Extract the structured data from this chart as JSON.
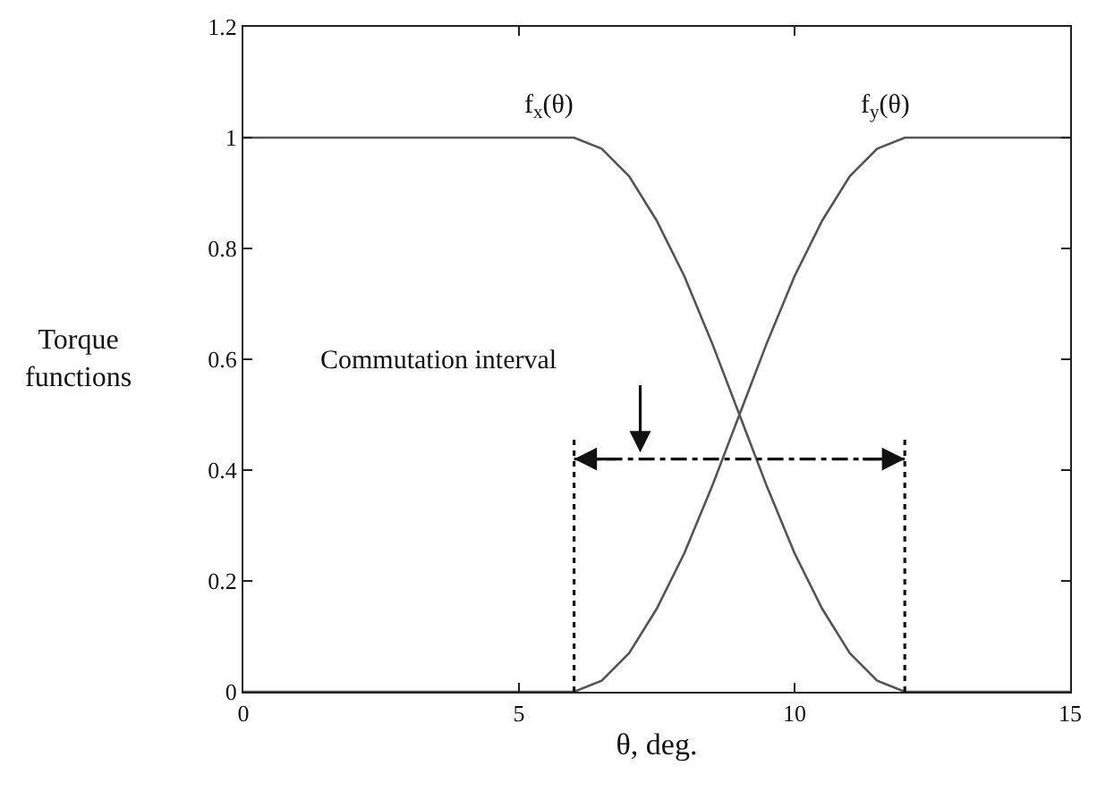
{
  "chart_data": {
    "type": "line",
    "xlabel": "θ, deg.",
    "ylabel": "Torque functions",
    "xlim": [
      0,
      15
    ],
    "xticks": [
      0,
      5,
      10,
      15
    ],
    "ylim": [
      0,
      1.2
    ],
    "yticks": [
      0,
      0.2,
      0.4,
      0.6,
      0.8,
      1,
      1.2
    ],
    "marker": "none",
    "line_style": "solid",
    "series": [
      {
        "color": "#555555",
        "x": [
          0,
          6,
          6.5,
          7,
          7.5,
          8,
          8.5,
          9,
          9.5,
          10,
          10.5,
          11,
          11.5,
          12,
          15
        ],
        "values": [
          1,
          1,
          0.98,
          0.93,
          0.85,
          0.75,
          0.63,
          0.5,
          0.37,
          0.25,
          0.15,
          0.07,
          0.02,
          0,
          0
        ]
      },
      {
        "color": "#555555",
        "x": [
          0,
          6,
          6.5,
          7,
          7.5,
          8,
          8.5,
          9,
          9.5,
          10,
          10.5,
          11,
          11.5,
          12,
          15
        ],
        "values": [
          0,
          0,
          0.02,
          0.07,
          0.15,
          0.25,
          0.37,
          0.5,
          0.63,
          0.75,
          0.85,
          0.93,
          0.98,
          1,
          1
        ]
      }
    ],
    "ref_lines": [
      {
        "axis": "x",
        "value": 6,
        "color": "#111111",
        "line_style": "dotted"
      },
      {
        "axis": "x",
        "value": 12,
        "color": "#111111",
        "line_style": "dotted"
      }
    ],
    "annotations": [
      "f$_{x}$(θ)",
      "f$_{y}$(θ)",
      "Commutation interval"
    ]
  }
}
